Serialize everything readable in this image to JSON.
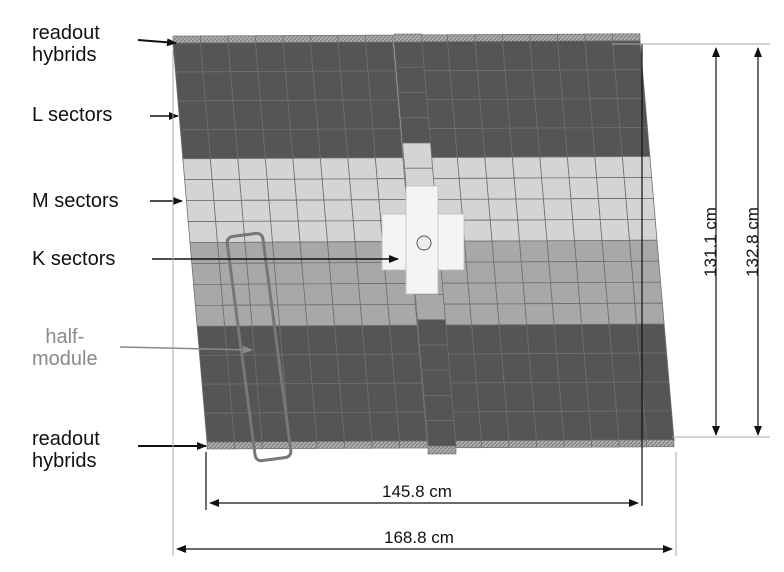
{
  "labels": {
    "readout_top": "readout\nhybrids",
    "l_sectors": "L sectors",
    "m_sectors": "M sectors",
    "k_sectors": "K sectors",
    "half_module": "half-\nmodule",
    "readout_bottom": "readout\nhybrids"
  },
  "dimensions": {
    "inner_height": "131.1 cm",
    "outer_height": "132.8 cm",
    "inner_width": "145.8 cm",
    "outer_width": "168.8 cm"
  },
  "colors": {
    "l_sector": "#555555",
    "m_sector": "#d4d4d4",
    "mid_sector": "#a8a8a8",
    "k_sector": "#f4f4f4",
    "hybrid": "#9a9a9a",
    "outline": "#777777"
  }
}
